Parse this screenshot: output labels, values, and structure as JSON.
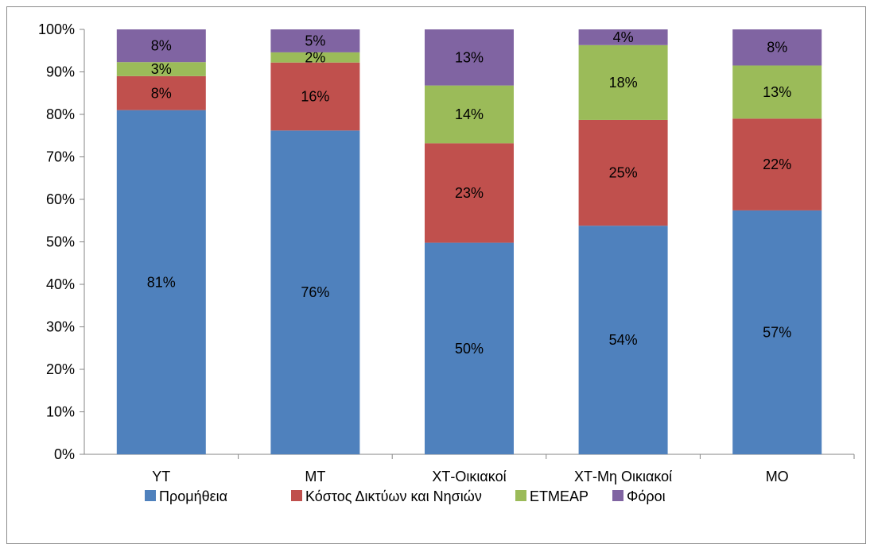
{
  "chart_data": {
    "type": "bar",
    "stacked": true,
    "percent": true,
    "categories": [
      "ΥΤ",
      "ΜΤ",
      "ΧΤ-Οικιακοί",
      "ΧΤ-Μη Οικιακοί",
      "ΜΟ"
    ],
    "series": [
      {
        "name": "Προμήθεια",
        "color": "#4F81BD",
        "values": [
          81,
          76,
          50,
          54,
          57
        ]
      },
      {
        "name": "Κόστος Δικτύων και Νησιών",
        "color": "#C0504D",
        "values": [
          8,
          16,
          23,
          25,
          22
        ]
      },
      {
        "name": "ΕΤΜΕΑΡ",
        "color": "#9BBB59",
        "values": [
          3,
          2,
          14,
          18,
          13
        ]
      },
      {
        "name": "Φόροι",
        "color": "#8064A2",
        "values": [
          8,
          5,
          13,
          4,
          8
        ]
      }
    ],
    "stack_tops": [
      [
        81,
        89,
        92.3,
        100
      ],
      [
        76.2,
        92.2,
        94.6,
        100
      ],
      [
        49.8,
        73.2,
        86.8,
        100
      ],
      [
        53.8,
        78.7,
        96.3,
        100
      ],
      [
        57.4,
        79,
        91.5,
        100
      ]
    ],
    "y_ticks": [
      "0%",
      "10%",
      "20%",
      "30%",
      "40%",
      "50%",
      "60%",
      "70%",
      "80%",
      "90%",
      "100%"
    ],
    "ylim": [
      0,
      100
    ],
    "title": "",
    "xlabel": "",
    "ylabel": "",
    "grid": false,
    "legend_position": "bottom"
  }
}
